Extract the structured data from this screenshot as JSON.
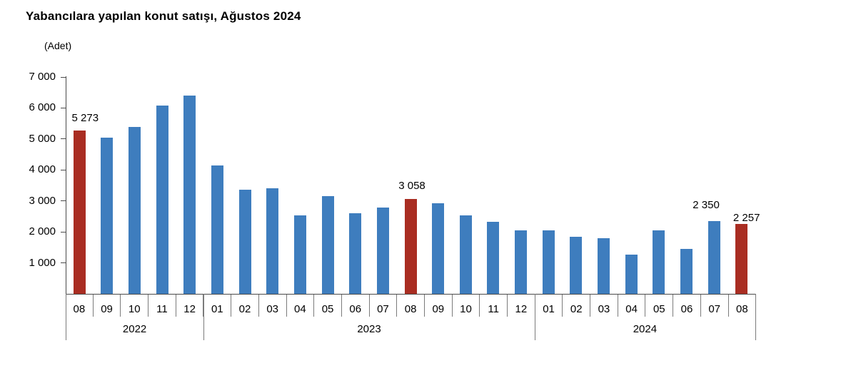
{
  "chart_data": {
    "type": "bar",
    "title": "Yabancılara yapılan konut satışı, Ağustos 2024",
    "unit_label": "(Adet)",
    "xlabel": "",
    "ylabel": "Adet",
    "ylim": [
      0,
      7000
    ],
    "ytick_step": 1000,
    "ytick_labels": [
      "1 000",
      "2 000",
      "3 000",
      "4 000",
      "5 000",
      "6 000",
      "7 000"
    ],
    "grid": false,
    "legend": null,
    "colors": {
      "bar_default": "#3e7dbe",
      "bar_highlight": "#a92d22",
      "axis": "#4a4a4a",
      "separator": "#7b7b7b",
      "text": "#000000"
    },
    "categories_years": [
      {
        "year": "2022",
        "months": [
          "08",
          "09",
          "10",
          "11",
          "12"
        ]
      },
      {
        "year": "2023",
        "months": [
          "01",
          "02",
          "03",
          "04",
          "05",
          "06",
          "07",
          "08",
          "09",
          "10",
          "11",
          "12"
        ]
      },
      {
        "year": "2024",
        "months": [
          "01",
          "02",
          "03",
          "04",
          "05",
          "06",
          "07",
          "08"
        ]
      }
    ],
    "series": [
      {
        "name": "Yabancılara yapılan konut satışı",
        "points": [
          {
            "year": "2022",
            "month": "08",
            "value": 5273,
            "highlight": true,
            "data_label": "5 273"
          },
          {
            "year": "2022",
            "month": "09",
            "value": 5050,
            "highlight": false
          },
          {
            "year": "2022",
            "month": "10",
            "value": 5380,
            "highlight": false
          },
          {
            "year": "2022",
            "month": "11",
            "value": 6080,
            "highlight": false
          },
          {
            "year": "2022",
            "month": "12",
            "value": 6400,
            "highlight": false
          },
          {
            "year": "2023",
            "month": "01",
            "value": 4150,
            "highlight": false
          },
          {
            "year": "2023",
            "month": "02",
            "value": 3360,
            "highlight": false
          },
          {
            "year": "2023",
            "month": "03",
            "value": 3400,
            "highlight": false
          },
          {
            "year": "2023",
            "month": "04",
            "value": 2530,
            "highlight": false
          },
          {
            "year": "2023",
            "month": "05",
            "value": 3160,
            "highlight": false
          },
          {
            "year": "2023",
            "month": "06",
            "value": 2600,
            "highlight": false
          },
          {
            "year": "2023",
            "month": "07",
            "value": 2790,
            "highlight": false
          },
          {
            "year": "2023",
            "month": "08",
            "value": 3058,
            "highlight": true,
            "data_label": "3 058"
          },
          {
            "year": "2023",
            "month": "09",
            "value": 2930,
            "highlight": false
          },
          {
            "year": "2023",
            "month": "10",
            "value": 2530,
            "highlight": false
          },
          {
            "year": "2023",
            "month": "11",
            "value": 2330,
            "highlight": false
          },
          {
            "year": "2023",
            "month": "12",
            "value": 2060,
            "highlight": false
          },
          {
            "year": "2024",
            "month": "01",
            "value": 2060,
            "highlight": false
          },
          {
            "year": "2024",
            "month": "02",
            "value": 1850,
            "highlight": false
          },
          {
            "year": "2024",
            "month": "03",
            "value": 1790,
            "highlight": false
          },
          {
            "year": "2024",
            "month": "04",
            "value": 1270,
            "highlight": false
          },
          {
            "year": "2024",
            "month": "05",
            "value": 2060,
            "highlight": false
          },
          {
            "year": "2024",
            "month": "06",
            "value": 1440,
            "highlight": false
          },
          {
            "year": "2024",
            "month": "07",
            "value": 2350,
            "highlight": false,
            "data_label": "2 350"
          },
          {
            "year": "2024",
            "month": "08",
            "value": 2257,
            "highlight": true,
            "data_label": "2 257"
          }
        ]
      }
    ]
  }
}
